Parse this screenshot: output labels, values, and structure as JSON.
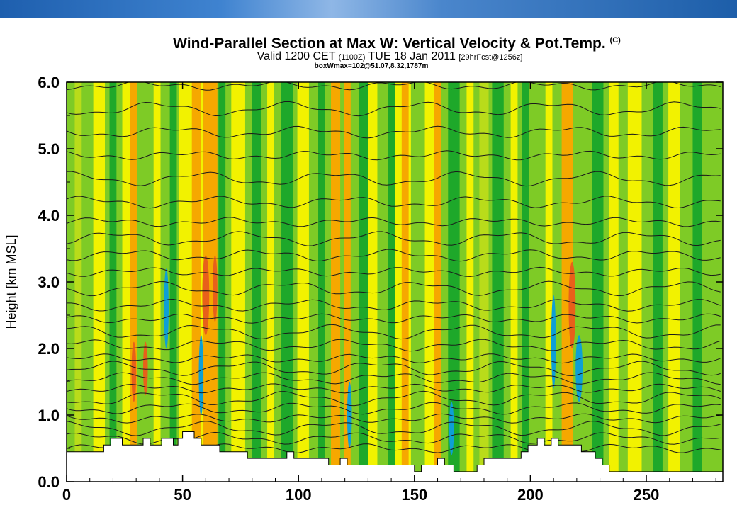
{
  "chart_data": {
    "type": "heatmap",
    "title": "Wind-Parallel Section at Max W: Vertical Velocity & Pot.Temp.",
    "title_mark": "(C)",
    "subtitle_main": "Valid 1200 CET",
    "subtitle_small1": "(1100Z)",
    "subtitle_mid": "TUE 18 Jan 2011",
    "subtitle_small2": "[29hrFcst@1256z]",
    "annotation": "boxWmax=102@51.07,8.32,1787m",
    "xlabel": "",
    "ylabel": "Height [km MSL]",
    "xlim": [
      0,
      283
    ],
    "ylim": [
      0,
      6
    ],
    "x_ticks": [
      "0",
      "50",
      "100",
      "150",
      "200",
      "250"
    ],
    "y_ticks": [
      "0.0",
      "1.0",
      "2.0",
      "3.0",
      "4.0",
      "5.0",
      "6.0"
    ],
    "colors": {
      "background": "#7ecb26",
      "strong_up": "#e8601a",
      "up": "#f6a800",
      "weak_up": "#f2f200",
      "weak_down": "#b9dc1a",
      "down": "#1ea82a",
      "strong_down": "#0e9fd6",
      "terrain": "#ffffff"
    },
    "bands": [
      {
        "x": 5,
        "w": 3,
        "t": "weak_down"
      },
      {
        "x": 14,
        "w": 5,
        "t": "weak_up"
      },
      {
        "x": 20,
        "w": 3,
        "t": "down"
      },
      {
        "x": 27,
        "w": 6,
        "t": "weak_up"
      },
      {
        "x": 29,
        "w": 3,
        "t": "up"
      },
      {
        "x": 39,
        "w": 3,
        "t": "weak_up"
      },
      {
        "x": 46,
        "w": 3,
        "t": "down"
      },
      {
        "x": 50,
        "w": 3,
        "t": "weak_up"
      },
      {
        "x": 55,
        "w": 8,
        "t": "weak_up"
      },
      {
        "x": 56,
        "w": 4,
        "t": "up"
      },
      {
        "x": 62,
        "w": 6,
        "t": "up"
      },
      {
        "x": 67,
        "w": 3,
        "t": "down"
      },
      {
        "x": 74,
        "w": 6,
        "t": "weak_up"
      },
      {
        "x": 82,
        "w": 4,
        "t": "down"
      },
      {
        "x": 88,
        "w": 3,
        "t": "weak_up"
      },
      {
        "x": 95,
        "w": 5,
        "t": "down"
      },
      {
        "x": 102,
        "w": 5,
        "t": "weak_up"
      },
      {
        "x": 110,
        "w": 3,
        "t": "down"
      },
      {
        "x": 116,
        "w": 4,
        "t": "up"
      },
      {
        "x": 121,
        "w": 3,
        "t": "up"
      },
      {
        "x": 128,
        "w": 4,
        "t": "down"
      },
      {
        "x": 132,
        "w": 4,
        "t": "weak_up"
      },
      {
        "x": 140,
        "w": 3,
        "t": "down"
      },
      {
        "x": 145,
        "w": 7,
        "t": "weak_up"
      },
      {
        "x": 146,
        "w": 3,
        "t": "up"
      },
      {
        "x": 157,
        "w": 5,
        "t": "weak_up"
      },
      {
        "x": 160,
        "w": 3,
        "t": "up"
      },
      {
        "x": 167,
        "w": 5,
        "t": "down"
      },
      {
        "x": 174,
        "w": 3,
        "t": "weak_up"
      },
      {
        "x": 180,
        "w": 4,
        "t": "weak_down"
      },
      {
        "x": 186,
        "w": 5,
        "t": "down"
      },
      {
        "x": 193,
        "w": 3,
        "t": "weak_up"
      },
      {
        "x": 198,
        "w": 3,
        "t": "down"
      },
      {
        "x": 208,
        "w": 3,
        "t": "weak_up"
      },
      {
        "x": 216,
        "w": 5,
        "t": "up"
      },
      {
        "x": 229,
        "w": 5,
        "t": "down"
      },
      {
        "x": 236,
        "w": 4,
        "t": "weak_up"
      },
      {
        "x": 245,
        "w": 6,
        "t": "weak_up"
      },
      {
        "x": 255,
        "w": 4,
        "t": "down"
      },
      {
        "x": 262,
        "w": 5,
        "t": "weak_up"
      },
      {
        "x": 272,
        "w": 4,
        "t": "down"
      }
    ],
    "cells": [
      {
        "x": 29,
        "w": 2,
        "y0": 1.2,
        "y1": 2.1,
        "t": "strong_up"
      },
      {
        "x": 34,
        "w": 2,
        "y0": 1.3,
        "y1": 2.1,
        "t": "strong_up"
      },
      {
        "x": 60,
        "w": 3,
        "y0": 2.2,
        "y1": 3.4,
        "t": "strong_up"
      },
      {
        "x": 64,
        "w": 2,
        "y0": 2.4,
        "y1": 3.4,
        "t": "strong_up"
      },
      {
        "x": 218,
        "w": 3,
        "y0": 2.0,
        "y1": 3.3,
        "t": "strong_up"
      },
      {
        "x": 43,
        "w": 2,
        "y0": 2.0,
        "y1": 3.2,
        "t": "strong_down"
      },
      {
        "x": 58,
        "w": 2,
        "y0": 1.0,
        "y1": 2.2,
        "t": "strong_down"
      },
      {
        "x": 122,
        "w": 2,
        "y0": 0.5,
        "y1": 1.5,
        "t": "strong_down"
      },
      {
        "x": 166,
        "w": 2,
        "y0": 0.4,
        "y1": 1.2,
        "t": "strong_down"
      },
      {
        "x": 221,
        "w": 3,
        "y0": 1.2,
        "y1": 2.2,
        "t": "strong_down"
      },
      {
        "x": 210,
        "w": 2,
        "y0": 1.4,
        "y1": 2.8,
        "t": "strong_down"
      }
    ],
    "isentropes_y": [
      0.5,
      0.65,
      0.8,
      0.95,
      1.1,
      1.25,
      1.4,
      1.55,
      1.7,
      1.85,
      2.05,
      2.25,
      2.45,
      2.65,
      2.9,
      3.15,
      3.4,
      3.65,
      3.9,
      4.2,
      4.55,
      4.9,
      5.25,
      5.6,
      5.95
    ],
    "terrain": [
      [
        0,
        0.45
      ],
      [
        16,
        0.45
      ],
      [
        16,
        0.55
      ],
      [
        19,
        0.55
      ],
      [
        19,
        0.65
      ],
      [
        24,
        0.65
      ],
      [
        24,
        0.55
      ],
      [
        33,
        0.55
      ],
      [
        33,
        0.65
      ],
      [
        36,
        0.65
      ],
      [
        36,
        0.55
      ],
      [
        41,
        0.55
      ],
      [
        41,
        0.65
      ],
      [
        46,
        0.65
      ],
      [
        46,
        0.55
      ],
      [
        48,
        0.55
      ],
      [
        48,
        0.65
      ],
      [
        50,
        0.65
      ],
      [
        50,
        0.75
      ],
      [
        55,
        0.75
      ],
      [
        55,
        0.65
      ],
      [
        58,
        0.65
      ],
      [
        58,
        0.55
      ],
      [
        66,
        0.55
      ],
      [
        66,
        0.45
      ],
      [
        78,
        0.45
      ],
      [
        78,
        0.35
      ],
      [
        95,
        0.35
      ],
      [
        95,
        0.45
      ],
      [
        98,
        0.45
      ],
      [
        98,
        0.35
      ],
      [
        113,
        0.35
      ],
      [
        113,
        0.25
      ],
      [
        118,
        0.25
      ],
      [
        118,
        0.35
      ],
      [
        121,
        0.35
      ],
      [
        121,
        0.25
      ],
      [
        150,
        0.25
      ],
      [
        150,
        0.15
      ],
      [
        153,
        0.15
      ],
      [
        153,
        0.25
      ],
      [
        160,
        0.25
      ],
      [
        160,
        0.35
      ],
      [
        163,
        0.35
      ],
      [
        163,
        0.25
      ],
      [
        167,
        0.25
      ],
      [
        167,
        0.15
      ],
      [
        177,
        0.15
      ],
      [
        177,
        0.25
      ],
      [
        180,
        0.25
      ],
      [
        180,
        0.35
      ],
      [
        196,
        0.35
      ],
      [
        196,
        0.45
      ],
      [
        199,
        0.45
      ],
      [
        199,
        0.55
      ],
      [
        203,
        0.55
      ],
      [
        203,
        0.65
      ],
      [
        206,
        0.65
      ],
      [
        206,
        0.55
      ],
      [
        209,
        0.55
      ],
      [
        209,
        0.65
      ],
      [
        212,
        0.65
      ],
      [
        212,
        0.55
      ],
      [
        222,
        0.55
      ],
      [
        222,
        0.45
      ],
      [
        228,
        0.45
      ],
      [
        228,
        0.35
      ],
      [
        231,
        0.35
      ],
      [
        231,
        0.25
      ],
      [
        234,
        0.25
      ],
      [
        234,
        0.15
      ],
      [
        283,
        0.15
      ],
      [
        283,
        0
      ],
      [
        0,
        0
      ]
    ]
  }
}
